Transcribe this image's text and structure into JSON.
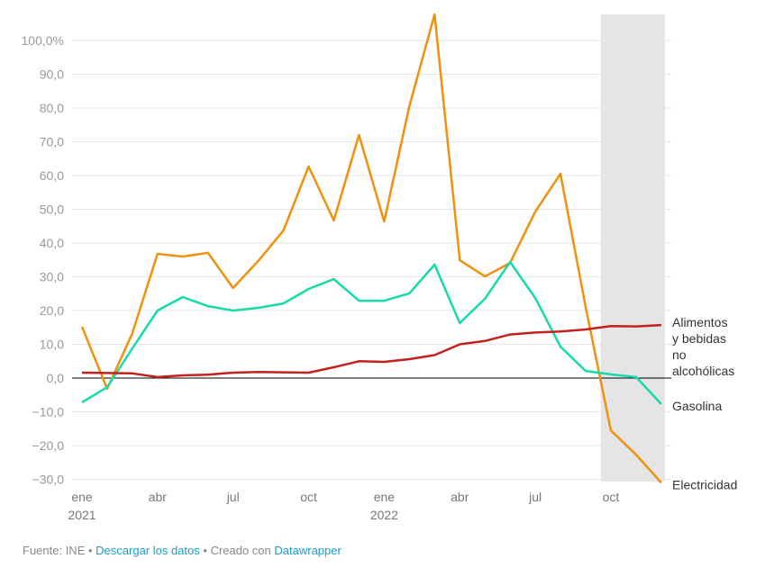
{
  "chart_data": {
    "type": "line",
    "title": "",
    "xlabel": "",
    "ylabel": "",
    "ylim": [
      -30,
      100
    ],
    "yticks": [
      -30,
      -20,
      -10,
      0,
      10,
      20,
      30,
      40,
      50,
      60,
      70,
      80,
      90,
      100
    ],
    "ytick_labels": [
      "−30,0",
      "−20,0",
      "−10,0",
      "0,0",
      "10,0",
      "20,0",
      "30,0",
      "40,0",
      "50,0",
      "60,0",
      "70,0",
      "80,0",
      "90,0",
      "100,0%"
    ],
    "xtick_labels": [
      {
        "month": 0,
        "line1": "ene",
        "line2": "2021"
      },
      {
        "month": 3,
        "line1": "abr",
        "line2": ""
      },
      {
        "month": 6,
        "line1": "jul",
        "line2": ""
      },
      {
        "month": 9,
        "line1": "oct",
        "line2": ""
      },
      {
        "month": 12,
        "line1": "ene",
        "line2": "2022"
      },
      {
        "month": 15,
        "line1": "abr",
        "line2": ""
      },
      {
        "month": 18,
        "line1": "jul",
        "line2": ""
      },
      {
        "month": 21,
        "line1": "oct",
        "line2": ""
      }
    ],
    "x": [
      "2021-01",
      "2021-02",
      "2021-03",
      "2021-04",
      "2021-05",
      "2021-06",
      "2021-07",
      "2021-08",
      "2021-09",
      "2021-10",
      "2021-11",
      "2021-12",
      "2022-01",
      "2022-02",
      "2022-03",
      "2022-04",
      "2022-05",
      "2022-06",
      "2022-07",
      "2022-08",
      "2022-09",
      "2022-10",
      "2022-11",
      "2022-12"
    ],
    "grid": "horizontal",
    "highlight_range": [
      "2022-09 (mid)",
      "2022-12"
    ],
    "highlight_color": "#e5e5e5",
    "series": [
      {
        "name": "Electricidad",
        "color": "#f0900c",
        "values": [
          15.2,
          -3.2,
          13.3,
          36.8,
          36.0,
          37.1,
          26.7,
          34.7,
          43.7,
          62.7,
          46.7,
          72.0,
          46.4,
          80.5,
          107.7,
          34.9,
          30.1,
          34.1,
          49.3,
          60.5,
          21.0,
          -15.5,
          -22.7,
          -31.0
        ]
      },
      {
        "name": "Gasolina",
        "color": "#15dba8",
        "values": [
          -7.2,
          -2.7,
          8.8,
          20.0,
          24.0,
          21.3,
          20.0,
          20.8,
          22.1,
          26.4,
          29.3,
          22.9,
          22.9,
          25.1,
          33.6,
          16.3,
          23.5,
          34.4,
          23.7,
          9.3,
          2.1,
          1.1,
          0.3,
          -7.7
        ]
      },
      {
        "name": "Alimentos y bebidas no alcohólicas",
        "label_lines": [
          "Alimentos",
          "y bebidas",
          "no",
          "alcohólicas"
        ],
        "color": "#c4201d",
        "values": [
          1.6,
          1.5,
          1.4,
          0.3,
          0.8,
          1.0,
          1.6,
          1.8,
          1.7,
          1.6,
          3.2,
          5.0,
          4.8,
          5.6,
          6.8,
          10.0,
          11.0,
          12.9,
          13.5,
          13.8,
          14.4,
          15.4,
          15.3,
          15.7
        ]
      }
    ]
  },
  "footer": {
    "source": "Fuente: INE",
    "sep": " • ",
    "download_link": "Descargar los datos",
    "created": "Creado con ",
    "datawrapper_link": "Datawrapper"
  }
}
